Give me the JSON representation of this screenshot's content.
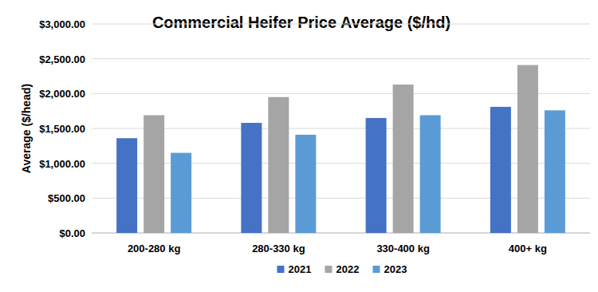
{
  "chart_data": {
    "type": "bar",
    "title": "Commercial Heifer Price Average ($/hd)",
    "y_label": "Average ($/head)",
    "categories": [
      "200-280 kg",
      "280-330 kg",
      "330-400 kg",
      "400+ kg"
    ],
    "series": [
      {
        "name": "2021",
        "color": "#4472c4",
        "values": [
          1360,
          1580,
          1650,
          1810
        ]
      },
      {
        "name": "2022",
        "color": "#a5a5a5",
        "values": [
          1690,
          1950,
          2130,
          2410
        ]
      },
      {
        "name": "2023",
        "color": "#5b9bd5",
        "values": [
          1150,
          1410,
          1690,
          1760
        ]
      }
    ],
    "ylim": [
      0,
      3000
    ],
    "yticks": [
      {
        "value": 0,
        "label": "$0.00"
      },
      {
        "value": 500,
        "label": "$500.00"
      },
      {
        "value": 1000,
        "label": "$1,000.00"
      },
      {
        "value": 1500,
        "label": "$1,500.00"
      },
      {
        "value": 2000,
        "label": "$2,000.00"
      },
      {
        "value": 2500,
        "label": "$2,500.00"
      },
      {
        "value": 3000,
        "label": "$3,000.00"
      }
    ],
    "grid": true,
    "legend": "bottom"
  }
}
